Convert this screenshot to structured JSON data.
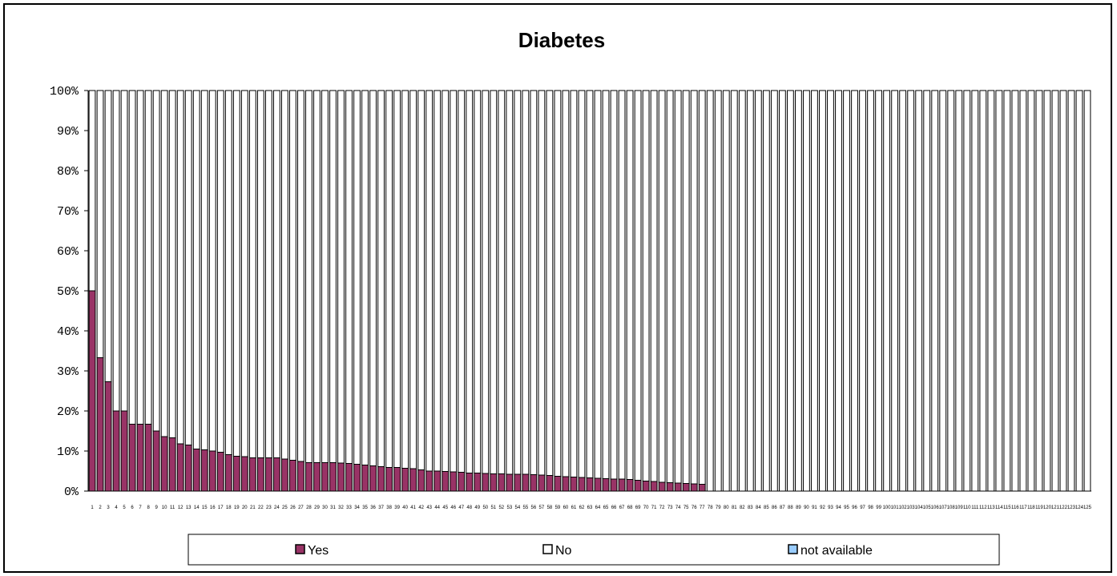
{
  "chart_data": {
    "type": "bar",
    "stacked": "percent",
    "title": "Diabetes",
    "xlabel": "",
    "ylabel": "",
    "ylim": [
      0,
      100
    ],
    "yticks": [
      "0%",
      "10%",
      "20%",
      "30%",
      "40%",
      "50%",
      "60%",
      "70%",
      "80%",
      "90%",
      "100%"
    ],
    "categories": [
      "1",
      "2",
      "3",
      "4",
      "5",
      "6",
      "7",
      "8",
      "9",
      "10",
      "11",
      "12",
      "13",
      "14",
      "15",
      "16",
      "17",
      "18",
      "19",
      "20",
      "21",
      "22",
      "23",
      "24",
      "25",
      "26",
      "27",
      "28",
      "29",
      "30",
      "31",
      "32",
      "33",
      "34",
      "35",
      "36",
      "37",
      "38",
      "39",
      "40",
      "41",
      "42",
      "43",
      "44",
      "45",
      "46",
      "47",
      "48",
      "49",
      "50",
      "51",
      "52",
      "53",
      "54",
      "55",
      "56",
      "57",
      "58",
      "59",
      "60",
      "61",
      "62",
      "63",
      "64",
      "65",
      "66",
      "67",
      "68",
      "69",
      "70",
      "71",
      "72",
      "73",
      "74",
      "75",
      "76",
      "77",
      "78",
      "79",
      "80",
      "81",
      "82",
      "83",
      "84",
      "85",
      "86",
      "87",
      "88",
      "89",
      "90",
      "91",
      "92",
      "93",
      "94",
      "95",
      "96",
      "97",
      "98",
      "99",
      "100",
      "101",
      "102",
      "103",
      "104",
      "105",
      "106",
      "107",
      "108",
      "109",
      "110",
      "111",
      "112",
      "113",
      "114",
      "115",
      "116",
      "117",
      "118",
      "119",
      "120",
      "121",
      "122",
      "123",
      "124",
      "125"
    ],
    "series": [
      {
        "name": "Yes",
        "color": "#993366",
        "values": [
          50.0,
          33.3,
          27.3,
          20.0,
          20.0,
          16.7,
          16.7,
          16.7,
          15.0,
          13.6,
          13.3,
          11.8,
          11.5,
          10.5,
          10.3,
          10.0,
          9.7,
          9.1,
          8.7,
          8.6,
          8.3,
          8.3,
          8.3,
          8.3,
          8.0,
          7.7,
          7.4,
          7.1,
          7.1,
          7.1,
          7.1,
          7.0,
          6.9,
          6.7,
          6.5,
          6.3,
          6.1,
          5.9,
          5.9,
          5.7,
          5.6,
          5.3,
          5.0,
          5.0,
          4.9,
          4.8,
          4.7,
          4.5,
          4.5,
          4.4,
          4.3,
          4.3,
          4.2,
          4.2,
          4.2,
          4.1,
          4.0,
          3.9,
          3.7,
          3.6,
          3.5,
          3.4,
          3.3,
          3.2,
          3.1,
          3.0,
          3.0,
          2.9,
          2.7,
          2.5,
          2.4,
          2.2,
          2.1,
          2.0,
          1.9,
          1.8,
          1.7,
          0,
          0,
          0,
          0,
          0,
          0,
          0,
          0,
          0,
          0,
          0,
          0,
          0,
          0,
          0,
          0,
          0,
          0,
          0,
          0,
          0,
          0,
          0,
          0,
          0,
          0,
          0,
          0,
          0,
          0,
          0,
          0,
          0,
          0,
          0,
          0,
          0,
          0,
          0,
          0,
          0,
          0,
          0,
          0,
          0,
          0,
          0,
          0
        ]
      },
      {
        "name": "No",
        "color": "#ffffff",
        "values": [
          50.0,
          66.7,
          72.7,
          80.0,
          80.0,
          83.3,
          83.3,
          83.3,
          85.0,
          86.4,
          86.7,
          88.2,
          88.5,
          89.5,
          89.7,
          90.0,
          90.3,
          90.9,
          91.3,
          91.4,
          91.7,
          91.7,
          91.7,
          91.7,
          92.0,
          92.3,
          92.6,
          92.9,
          92.9,
          92.9,
          92.9,
          93.0,
          93.1,
          93.3,
          93.5,
          93.7,
          93.9,
          94.1,
          94.1,
          94.3,
          94.4,
          94.7,
          95.0,
          95.0,
          95.1,
          95.2,
          95.3,
          95.5,
          95.5,
          95.6,
          95.7,
          95.7,
          95.8,
          95.8,
          95.8,
          95.9,
          96.0,
          96.1,
          96.3,
          96.4,
          96.5,
          96.6,
          96.7,
          96.8,
          96.9,
          97.0,
          97.0,
          97.1,
          97.3,
          97.5,
          97.6,
          97.8,
          97.9,
          98.0,
          98.1,
          98.2,
          98.3,
          100,
          100,
          100,
          100,
          100,
          100,
          100,
          100,
          100,
          100,
          100,
          100,
          100,
          100,
          100,
          100,
          100,
          100,
          100,
          100,
          100,
          100,
          100,
          100,
          100,
          100,
          100,
          100,
          100,
          100,
          100,
          100,
          100,
          100,
          100,
          100,
          100,
          100,
          100,
          100,
          100,
          100,
          100,
          100,
          100,
          100,
          100,
          100
        ]
      },
      {
        "name": "not available",
        "color": "#99ccff",
        "values": [
          0,
          0,
          0,
          0,
          0,
          0,
          0,
          0,
          0,
          0,
          0,
          0,
          0,
          0,
          0,
          0,
          0,
          0,
          0,
          0,
          0,
          0,
          0,
          0,
          0,
          0,
          0,
          0,
          0,
          0,
          0,
          0,
          0,
          0,
          0,
          0,
          0,
          0,
          0,
          0,
          0,
          0,
          0,
          0,
          0,
          0,
          0,
          0,
          0,
          0,
          0,
          0,
          0,
          0,
          0,
          0,
          0,
          0,
          0,
          0,
          0,
          0,
          0,
          0,
          0,
          0,
          0,
          0,
          0,
          0,
          0,
          0,
          0,
          0,
          0,
          0,
          0,
          0,
          0,
          0,
          0,
          0,
          0,
          0,
          0,
          0,
          0,
          0,
          0,
          0,
          0,
          0,
          0,
          0,
          0,
          0,
          0,
          0,
          0,
          0,
          0,
          0,
          0,
          0,
          0,
          0,
          0,
          0,
          0,
          0,
          0,
          0,
          0,
          0,
          0,
          0,
          0,
          0,
          0,
          0,
          0,
          0,
          0,
          0,
          0
        ]
      }
    ],
    "grid": false,
    "legend": "bottom"
  }
}
